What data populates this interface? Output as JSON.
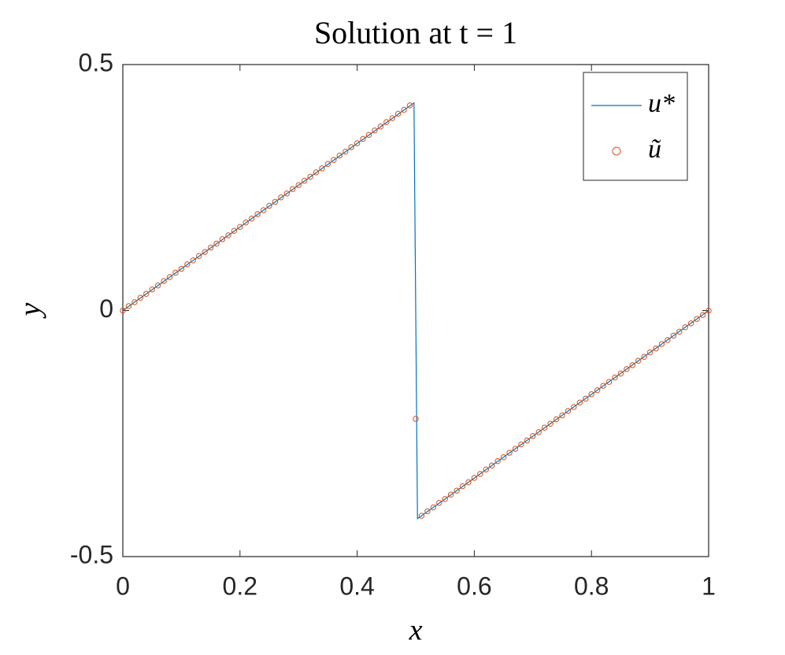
{
  "chart_data": {
    "type": "line",
    "title": "Solution at t = 1",
    "x_label": "x",
    "y_label": "y",
    "xlim": [
      0,
      1
    ],
    "ylim": [
      -0.5,
      0.5
    ],
    "xticks": [
      0,
      0.2,
      0.4,
      0.6,
      0.8,
      1
    ],
    "yticks": [
      -0.5,
      0,
      0.5
    ],
    "legend": "upper right",
    "series": [
      {
        "name": "u*",
        "color": "#0072bd",
        "style": "line",
        "x": [
          0,
          0.497,
          0.503,
          1
        ],
        "values": [
          0,
          0.422,
          -0.423,
          0
        ]
      },
      {
        "name": "ũ",
        "color": "#d95319",
        "style": "marker",
        "x": [
          0,
          0.01,
          0.02,
          0.03,
          0.04,
          0.05,
          0.06,
          0.07,
          0.08,
          0.09,
          0.1,
          0.11,
          0.12,
          0.13,
          0.14,
          0.15,
          0.16,
          0.17,
          0.18,
          0.19,
          0.2,
          0.21,
          0.22,
          0.23,
          0.24,
          0.25,
          0.26,
          0.27,
          0.28,
          0.29,
          0.3,
          0.31,
          0.32,
          0.33,
          0.34,
          0.35,
          0.36,
          0.37,
          0.38,
          0.39,
          0.4,
          0.41,
          0.42,
          0.43,
          0.44,
          0.45,
          0.46,
          0.47,
          0.48,
          0.49,
          0.5,
          0.51,
          0.52,
          0.53,
          0.54,
          0.55,
          0.56,
          0.57,
          0.58,
          0.59,
          0.6,
          0.61,
          0.62,
          0.63,
          0.64,
          0.65,
          0.66,
          0.67,
          0.68,
          0.69,
          0.7,
          0.71,
          0.72,
          0.73,
          0.74,
          0.75,
          0.76,
          0.77,
          0.78,
          0.79,
          0.8,
          0.81,
          0.82,
          0.83,
          0.84,
          0.85,
          0.86,
          0.87,
          0.88,
          0.89,
          0.9,
          0.91,
          0.92,
          0.93,
          0.94,
          0.95,
          0.96,
          0.97,
          0.98,
          0.99,
          1
        ],
        "values": [
          0,
          0.009,
          0.017,
          0.026,
          0.034,
          0.043,
          0.051,
          0.06,
          0.068,
          0.077,
          0.085,
          0.094,
          0.102,
          0.111,
          0.119,
          0.128,
          0.136,
          0.145,
          0.153,
          0.162,
          0.17,
          0.179,
          0.187,
          0.196,
          0.204,
          0.213,
          0.221,
          0.23,
          0.238,
          0.247,
          0.255,
          0.264,
          0.272,
          0.281,
          0.289,
          0.298,
          0.306,
          0.315,
          0.323,
          0.332,
          0.34,
          0.349,
          0.357,
          0.366,
          0.374,
          0.383,
          0.391,
          0.4,
          0.408,
          0.417,
          -0.22,
          -0.417,
          -0.408,
          -0.4,
          -0.391,
          -0.383,
          -0.374,
          -0.366,
          -0.357,
          -0.349,
          -0.34,
          -0.332,
          -0.323,
          -0.315,
          -0.306,
          -0.298,
          -0.289,
          -0.281,
          -0.272,
          -0.264,
          -0.255,
          -0.247,
          -0.238,
          -0.23,
          -0.221,
          -0.213,
          -0.204,
          -0.196,
          -0.187,
          -0.179,
          -0.17,
          -0.162,
          -0.153,
          -0.145,
          -0.136,
          -0.128,
          -0.119,
          -0.111,
          -0.102,
          -0.094,
          -0.085,
          -0.077,
          -0.068,
          -0.06,
          -0.051,
          -0.043,
          -0.034,
          -0.026,
          -0.017,
          -0.009,
          0
        ]
      }
    ]
  }
}
